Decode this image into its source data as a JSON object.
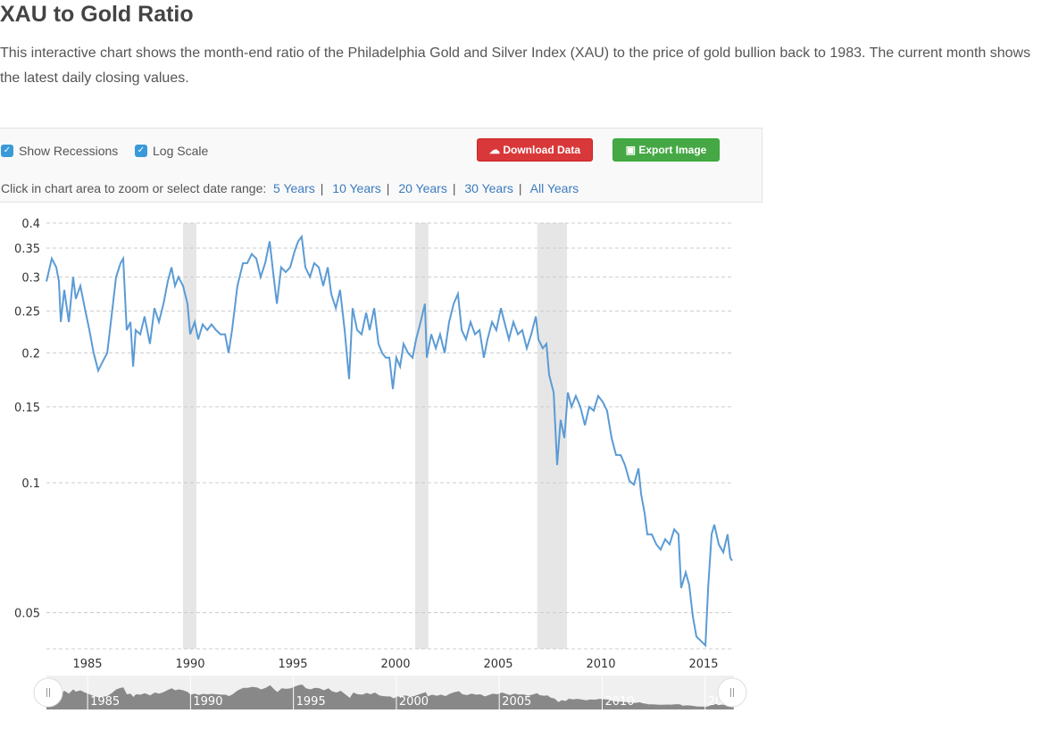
{
  "page": {
    "title": "XAU to Gold Ratio",
    "description": "This interactive chart shows the month-end ratio of the Philadelphia Gold and Silver Index (XAU) to the price of gold bullion back to 1983. The current month shows the latest daily closing values."
  },
  "controls": {
    "show_recessions": "Show Recessions",
    "log_scale": "Log Scale",
    "download": "Download Data",
    "export": "Export Image",
    "range_prompt": "Click in chart area to zoom or select date range:",
    "ranges": [
      "5 Years",
      "10 Years",
      "20 Years",
      "30 Years",
      "All Years"
    ]
  },
  "colors": {
    "line": "#5b9bd5",
    "recession": "#e6e6e6",
    "navigator": "#888888"
  },
  "chart_data": {
    "type": "line",
    "title": "XAU to Gold Ratio",
    "xlabel": "",
    "ylabel": "",
    "yscale": "log",
    "ylim": [
      0.0412,
      0.4
    ],
    "xlim": [
      1983.0,
      2016.4
    ],
    "yticks": [
      0.05,
      0.1,
      0.15,
      0.2,
      0.25,
      0.3,
      0.35,
      0.4
    ],
    "ytick_labels": [
      "0.05",
      "0.1",
      "0.15",
      "0.2",
      "0.25",
      "0.3",
      "0.35",
      "0.4"
    ],
    "xticks": [
      1985,
      1990,
      1995,
      2000,
      2005,
      2010,
      2015
    ],
    "xtick_labels": [
      "1985",
      "1990",
      "1995",
      "2000",
      "2005",
      "2010",
      "2015"
    ],
    "recessions": [
      [
        1989.65,
        1990.3
      ],
      [
        2000.96,
        2001.6
      ],
      [
        2006.9,
        2008.35
      ]
    ],
    "x": [
      1983.0,
      1983.26,
      1983.48,
      1983.61,
      1983.7,
      1983.87,
      1984.09,
      1984.3,
      1984.43,
      1984.65,
      1984.87,
      1985.09,
      1985.3,
      1985.52,
      1985.74,
      1985.96,
      1986.17,
      1986.39,
      1986.61,
      1986.74,
      1986.91,
      1987.09,
      1987.22,
      1987.35,
      1987.57,
      1987.78,
      1988.04,
      1988.26,
      1988.48,
      1988.7,
      1988.91,
      1989.09,
      1989.26,
      1989.43,
      1989.65,
      1989.87,
      1990.0,
      1990.22,
      1990.39,
      1990.61,
      1990.83,
      1991.04,
      1991.26,
      1991.48,
      1991.7,
      1991.87,
      1992.04,
      1992.3,
      1992.57,
      1992.78,
      1993.0,
      1993.22,
      1993.43,
      1993.65,
      1993.87,
      1994.04,
      1994.22,
      1994.43,
      1994.65,
      1994.87,
      1995.09,
      1995.26,
      1995.43,
      1995.61,
      1995.83,
      1996.04,
      1996.26,
      1996.48,
      1996.7,
      1996.87,
      1997.09,
      1997.3,
      1997.52,
      1997.74,
      1997.91,
      1998.13,
      1998.35,
      1998.57,
      1998.74,
      1998.96,
      1999.17,
      1999.35,
      1999.52,
      1999.7,
      1999.87,
      2000.04,
      2000.22,
      2000.39,
      2000.61,
      2000.83,
      2001.0,
      2001.22,
      2001.43,
      2001.52,
      2001.74,
      2001.96,
      2002.17,
      2002.39,
      2002.61,
      2002.83,
      2003.04,
      2003.22,
      2003.43,
      2003.65,
      2003.87,
      2004.09,
      2004.3,
      2004.48,
      2004.7,
      2004.91,
      2005.13,
      2005.3,
      2005.52,
      2005.74,
      2005.96,
      2006.17,
      2006.39,
      2006.61,
      2006.83,
      2006.96,
      2007.17,
      2007.35,
      2007.48,
      2007.7,
      2007.87,
      2008.04,
      2008.22,
      2008.39,
      2008.57,
      2008.78,
      2009.0,
      2009.22,
      2009.43,
      2009.65,
      2009.87,
      2010.09,
      2010.3,
      2010.52,
      2010.74,
      2010.96,
      2011.17,
      2011.39,
      2011.61,
      2011.83,
      2011.96,
      2012.13,
      2012.26,
      2012.48,
      2012.7,
      2012.91,
      2013.13,
      2013.35,
      2013.57,
      2013.78,
      2013.91,
      2014.13,
      2014.3,
      2014.48,
      2014.65,
      2014.87,
      2015.09,
      2015.22,
      2015.39,
      2015.52,
      2015.74,
      2015.96,
      2016.17,
      2016.3,
      2016.39
    ],
    "y": [
      0.293,
      0.331,
      0.316,
      0.293,
      0.236,
      0.28,
      0.236,
      0.3,
      0.267,
      0.286,
      0.254,
      0.226,
      0.2,
      0.182,
      0.191,
      0.2,
      0.243,
      0.3,
      0.323,
      0.331,
      0.226,
      0.236,
      0.186,
      0.226,
      0.221,
      0.243,
      0.21,
      0.254,
      0.236,
      0.26,
      0.293,
      0.316,
      0.286,
      0.3,
      0.286,
      0.26,
      0.221,
      0.236,
      0.215,
      0.233,
      0.226,
      0.233,
      0.226,
      0.221,
      0.221,
      0.2,
      0.226,
      0.286,
      0.323,
      0.323,
      0.339,
      0.331,
      0.3,
      0.323,
      0.363,
      0.308,
      0.26,
      0.316,
      0.308,
      0.316,
      0.345,
      0.363,
      0.372,
      0.316,
      0.3,
      0.323,
      0.316,
      0.286,
      0.316,
      0.274,
      0.254,
      0.28,
      0.226,
      0.174,
      0.254,
      0.226,
      0.221,
      0.248,
      0.226,
      0.254,
      0.21,
      0.2,
      0.195,
      0.195,
      0.165,
      0.195,
      0.186,
      0.21,
      0.2,
      0.195,
      0.215,
      0.236,
      0.26,
      0.195,
      0.221,
      0.205,
      0.221,
      0.2,
      0.236,
      0.26,
      0.274,
      0.226,
      0.215,
      0.236,
      0.221,
      0.226,
      0.195,
      0.215,
      0.236,
      0.226,
      0.254,
      0.236,
      0.215,
      0.236,
      0.221,
      0.226,
      0.205,
      0.221,
      0.243,
      0.215,
      0.205,
      0.21,
      0.178,
      0.162,
      0.11,
      0.14,
      0.127,
      0.162,
      0.15,
      0.159,
      0.15,
      0.136,
      0.15,
      0.147,
      0.159,
      0.154,
      0.147,
      0.127,
      0.116,
      0.116,
      0.11,
      0.101,
      0.099,
      0.108,
      0.094,
      0.085,
      0.076,
      0.076,
      0.072,
      0.07,
      0.074,
      0.072,
      0.078,
      0.076,
      0.057,
      0.062,
      0.058,
      0.049,
      0.044,
      0.043,
      0.042,
      0.057,
      0.076,
      0.08,
      0.072,
      0.069,
      0.076,
      0.067,
      0.066
    ]
  }
}
